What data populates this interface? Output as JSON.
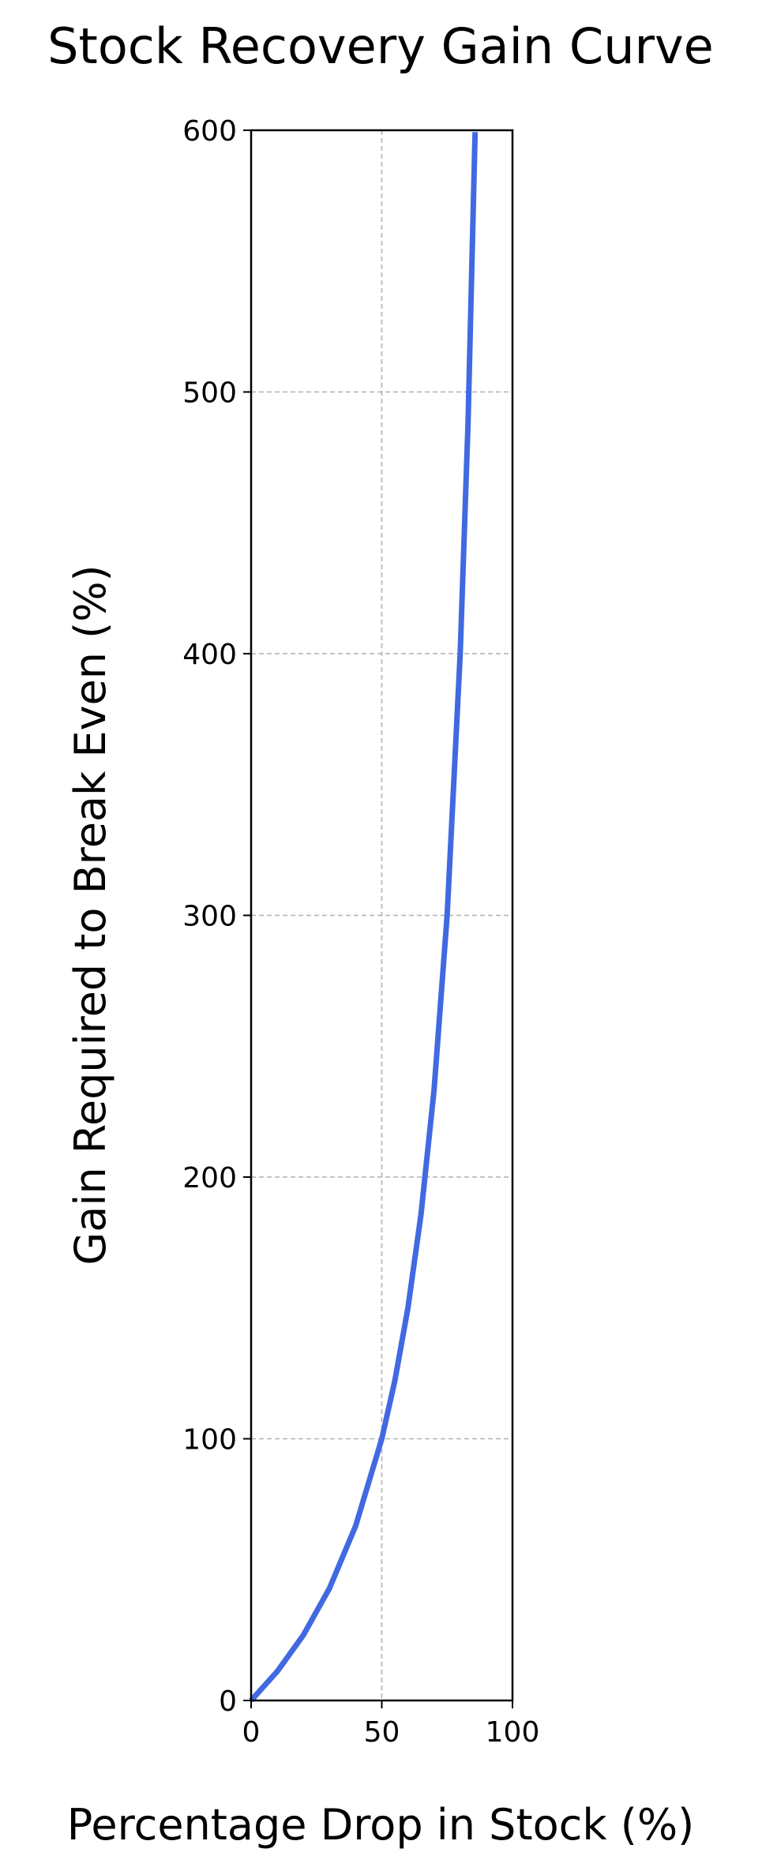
{
  "chart_data": {
    "type": "line",
    "title": "Stock Recovery Gain Curve",
    "xlabel": "Percentage Drop in Stock (%)",
    "ylabel": "Gain Required to Break Even (%)",
    "xlim": [
      0,
      100
    ],
    "ylim": [
      0,
      600
    ],
    "xticks": [
      "0",
      "50",
      "100"
    ],
    "yticks": [
      "0",
      "100",
      "200",
      "300",
      "400",
      "500",
      "600"
    ],
    "grid": true,
    "series": [
      {
        "color": "#4169e1",
        "x": [
          0,
          10,
          20,
          30,
          40,
          50,
          55,
          60,
          65,
          70,
          75,
          80,
          83,
          85.7
        ],
        "y": [
          0,
          11.1,
          25,
          42.9,
          66.7,
          100,
          122.2,
          150,
          185.7,
          233.3,
          300,
          400,
          488.2,
          599.3
        ]
      }
    ]
  }
}
